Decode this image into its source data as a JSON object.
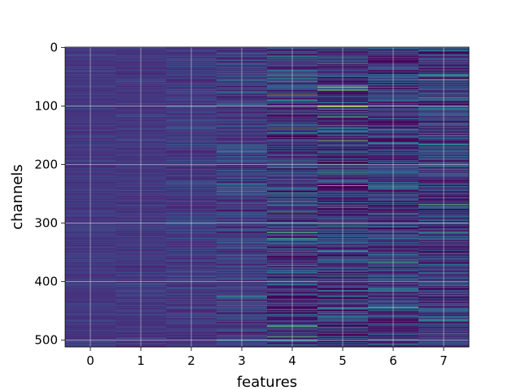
{
  "chart_data": {
    "type": "heatmap",
    "title": "",
    "xlabel": "features",
    "ylabel": "channels",
    "x_categories": [
      "0",
      "1",
      "2",
      "3",
      "4",
      "5",
      "6",
      "7"
    ],
    "y_ticks": [
      0,
      100,
      200,
      300,
      400,
      500
    ],
    "y_range": [
      0,
      511
    ],
    "y_inverted": true,
    "rows": 512,
    "colormap": "viridis",
    "grid": true,
    "column_contrast": [
      0.06,
      0.07,
      0.1,
      0.18,
      0.3,
      0.38,
      0.3,
      0.3
    ],
    "column_base": [
      0.17,
      0.17,
      0.18,
      0.2,
      0.2,
      0.18,
      0.2,
      0.21
    ],
    "highlights": [
      {
        "feature": 5,
        "channel": 100,
        "value": 0.95
      },
      {
        "feature": 5,
        "channel": 101,
        "value": 0.9
      },
      {
        "feature": 4,
        "channel": 80,
        "value": 0.8
      },
      {
        "feature": 4,
        "channel": 476,
        "value": 0.75
      },
      {
        "feature": 3,
        "channel": 434,
        "value": 0.55
      },
      {
        "feature": 6,
        "channel": 284,
        "value": 0.55
      },
      {
        "feature": 7,
        "channel": 316,
        "value": 0.6
      },
      {
        "feature": 5,
        "channel": 28,
        "value": 0.65
      },
      {
        "feature": 7,
        "channel": 1,
        "value": 0.55
      }
    ]
  }
}
